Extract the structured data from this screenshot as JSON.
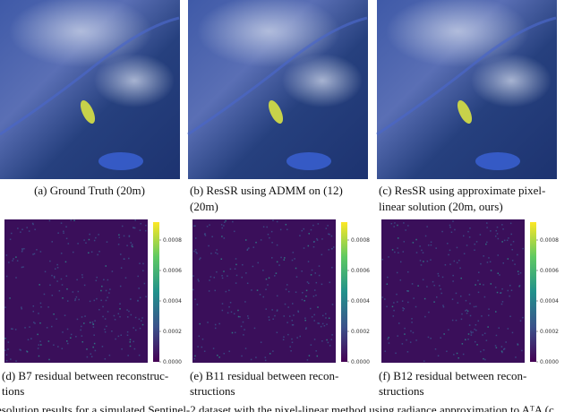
{
  "figure": {
    "top_panels": [
      {
        "caption_lines": [
          "(a) Ground Truth (20m)"
        ]
      },
      {
        "caption_lines": [
          "(b) ResSR using ADMM on (12)",
          "(20m)"
        ]
      },
      {
        "caption_lines": [
          "(c) ResSR using approximate pixel-",
          "linear solution (20m, ours)"
        ]
      }
    ],
    "bottom_panels": [
      {
        "caption_lines": [
          "(d) B7 residual between reconstruc-",
          "tions"
        ],
        "colorbar_ticks": [
          "0.0008",
          "0.0006",
          "0.0004",
          "0.0002",
          "0.0000"
        ]
      },
      {
        "caption_lines": [
          "(e) B11 residual between recon-",
          "structions"
        ],
        "colorbar_ticks": [
          "0.0008",
          "0.0006",
          "0.0004",
          "0.0002",
          "0.0000"
        ]
      },
      {
        "caption_lines": [
          "(f) B12 residual between recon-",
          "structions"
        ],
        "colorbar_ticks": [
          "0.0008",
          "0.0006",
          "0.0004",
          "0.0002",
          "0.0000"
        ]
      }
    ],
    "caption_fragment": "esolution results for a simulated Sentinel-2 dataset with the pixel-linear method using radiance approximation to AᵀA (c"
  }
}
